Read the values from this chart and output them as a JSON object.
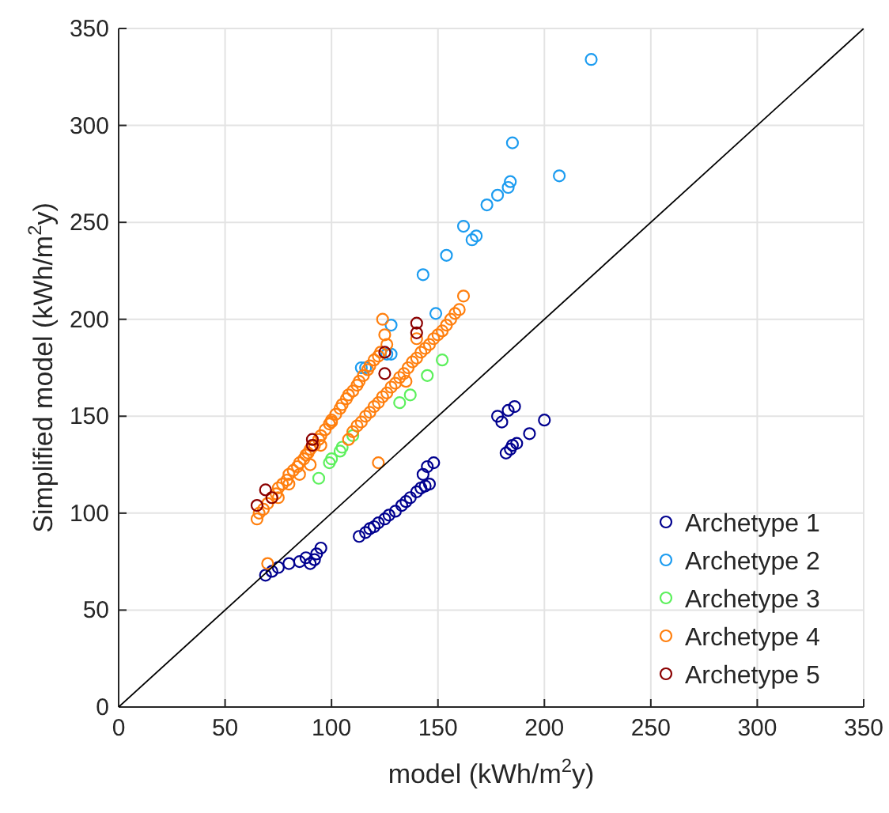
{
  "chart_data": {
    "type": "scatter",
    "xlabel": "model (kWh/m$^{2}$y)",
    "ylabel": "Simplified model (kWh/m$^{2}$y)",
    "xlim": [
      0,
      350
    ],
    "ylim": [
      0,
      350
    ],
    "xticks": [
      0,
      50,
      100,
      150,
      200,
      250,
      300,
      350
    ],
    "yticks": [
      0,
      50,
      100,
      150,
      200,
      250,
      300,
      350
    ],
    "grid": true,
    "legend": "bottom right",
    "marker": "circle",
    "series": [
      {
        "name": "Archetype 1",
        "color": "#00008f",
        "x": [
          69,
          72,
          75,
          80,
          85,
          88,
          90,
          93,
          95,
          92,
          113,
          116,
          118,
          120,
          122,
          125,
          127,
          130,
          133,
          135,
          137,
          140,
          142,
          144,
          146,
          143,
          145,
          148,
          182,
          184,
          185,
          187,
          193,
          200,
          180,
          183,
          186,
          178
        ],
        "values": [
          68,
          70,
          72,
          74,
          75,
          77,
          74,
          79,
          82,
          76,
          88,
          90,
          92,
          93,
          95,
          97,
          99,
          101,
          104,
          106,
          108,
          111,
          113,
          114,
          115,
          120,
          124,
          126,
          131,
          133,
          135,
          136,
          141,
          148,
          147,
          153,
          155,
          150
        ]
      },
      {
        "name": "Archetype 2",
        "color": "#1c9cf0",
        "x": [
          222,
          185,
          207,
          184,
          183,
          178,
          173,
          162,
          168,
          166,
          154,
          143,
          149,
          128,
          128,
          114,
          126,
          116
        ],
        "values": [
          334,
          291,
          274,
          271,
          268,
          264,
          259,
          248,
          243,
          241,
          233,
          223,
          203,
          197,
          182,
          175,
          182,
          175
        ]
      },
      {
        "name": "Archetype 3",
        "color": "#5cf05c",
        "x": [
          94,
          99,
          104,
          110,
          132,
          137,
          145,
          152,
          100,
          105
        ],
        "values": [
          118,
          126,
          132,
          140,
          157,
          161,
          171,
          179,
          128,
          134
        ]
      },
      {
        "name": "Archetype 4",
        "color": "#ff7f0e",
        "x": [
          65,
          66,
          68,
          70,
          72,
          74,
          75,
          77,
          79,
          80,
          82,
          84,
          85,
          87,
          89,
          90,
          92,
          94,
          95,
          97,
          99,
          100,
          102,
          104,
          105,
          107,
          108,
          110,
          112,
          113,
          115,
          117,
          118,
          120,
          122,
          123,
          126,
          125,
          124,
          75,
          80,
          85,
          90,
          88,
          95,
          108,
          110,
          112,
          114,
          116,
          118,
          120,
          122,
          124,
          126,
          128,
          130,
          132,
          134,
          136,
          138,
          140,
          142,
          144,
          146,
          148,
          150,
          152,
          154,
          156,
          158,
          160,
          162,
          140,
          135,
          70,
          122,
          100
        ],
        "values": [
          97,
          100,
          102,
          105,
          108,
          110,
          113,
          115,
          117,
          120,
          122,
          124,
          126,
          128,
          131,
          133,
          135,
          138,
          140,
          143,
          146,
          148,
          151,
          154,
          156,
          159,
          161,
          163,
          166,
          168,
          171,
          174,
          176,
          179,
          181,
          183,
          187,
          192,
          200,
          108,
          115,
          120,
          125,
          130,
          135,
          138,
          142,
          145,
          147,
          150,
          152,
          155,
          157,
          160,
          162,
          165,
          167,
          170,
          172,
          175,
          178,
          180,
          183,
          185,
          187,
          190,
          192,
          194,
          197,
          200,
          203,
          205,
          212,
          190,
          168,
          74,
          126,
          147
        ]
      },
      {
        "name": "Archetype 5",
        "color": "#8b0000",
        "x": [
          65,
          69,
          72,
          91,
          91,
          125,
          125,
          140,
          140
        ],
        "values": [
          104,
          112,
          108,
          135,
          138,
          172,
          183,
          193,
          198
        ]
      },
      {
        "type": "line",
        "color": "#000000",
        "marker": "none",
        "x": [
          0,
          350
        ],
        "values": [
          0,
          350
        ]
      }
    ]
  }
}
